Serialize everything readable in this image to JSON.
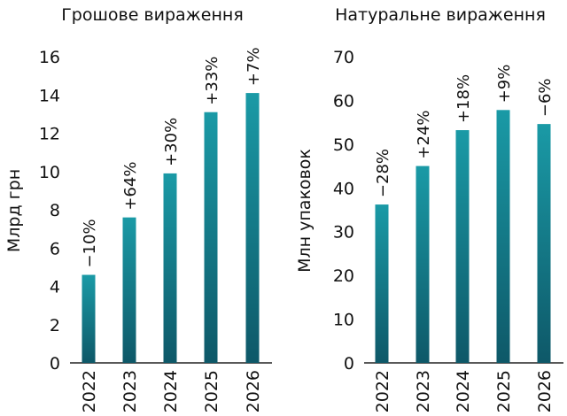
{
  "colors": {
    "bar_top": "#1a9aa6",
    "bar_bottom": "#0e5868",
    "axis": "#222222"
  },
  "chart_data": [
    {
      "type": "bar",
      "title": "Грошове вираження",
      "ylabel": "Млрд грн",
      "xlabel": "",
      "categories": [
        "2022",
        "2023",
        "2024",
        "2025",
        "2026"
      ],
      "values": [
        4.6,
        7.6,
        9.9,
        13.1,
        14.1
      ],
      "data_labels": [
        "−10%",
        "+64%",
        "+30%",
        "+33%",
        "+7%"
      ],
      "ylim": [
        0,
        16
      ],
      "yticks": [
        0,
        2,
        4,
        6,
        8,
        10,
        12,
        14,
        16
      ],
      "grid": false
    },
    {
      "type": "bar",
      "title": "Натуральне вираження",
      "ylabel": "Млн упаковок",
      "xlabel": "",
      "categories": [
        "2022",
        "2023",
        "2024",
        "2025",
        "2026"
      ],
      "values": [
        36.2,
        45.0,
        53.2,
        57.8,
        54.6
      ],
      "data_labels": [
        "−28%",
        "+24%",
        "+18%",
        "+9%",
        "−6%"
      ],
      "ylim": [
        0,
        70
      ],
      "yticks": [
        0,
        10,
        20,
        30,
        40,
        50,
        60,
        70
      ],
      "grid": false
    }
  ]
}
